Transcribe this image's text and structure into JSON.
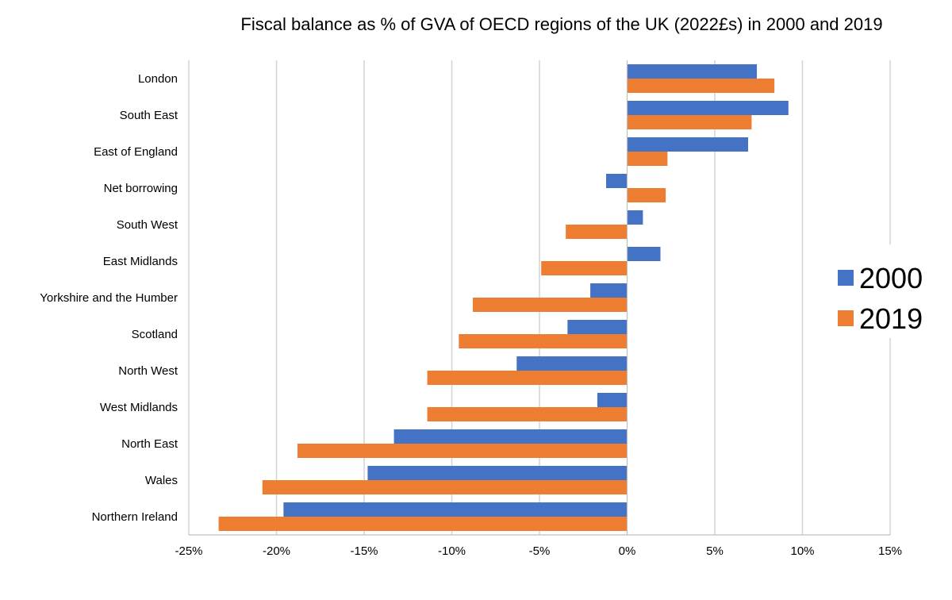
{
  "chart_data": {
    "type": "bar",
    "orientation": "horizontal",
    "title": "Fiscal balance as % of GVA of OECD regions of the UK (2022£s) in 2000 and 2019",
    "xlabel": "",
    "ylabel": "",
    "xlim": [
      -25,
      15
    ],
    "x_ticks": [
      -25,
      -20,
      -15,
      -10,
      -5,
      0,
      5,
      10,
      15
    ],
    "x_tick_labels": [
      "-25%",
      "-20%",
      "-15%",
      "-10%",
      "-5%",
      "0%",
      "5%",
      "10%",
      "15%"
    ],
    "grid": true,
    "legend_position": "right",
    "categories": [
      "London",
      "South East",
      "East of England",
      "Net borrowing",
      "South West",
      "East Midlands",
      "Yorkshire and the Humber",
      "Scotland",
      "North West",
      "West Midlands",
      "North East",
      "Wales",
      "Northern Ireland"
    ],
    "series": [
      {
        "name": "2000",
        "color": "#4472C4",
        "values": [
          7.4,
          9.2,
          6.9,
          -1.2,
          0.9,
          1.9,
          -2.1,
          -3.4,
          -6.3,
          -1.7,
          -13.3,
          -14.8,
          -19.6
        ]
      },
      {
        "name": "2019",
        "color": "#ED7D31",
        "values": [
          8.4,
          7.1,
          2.3,
          2.2,
          -3.5,
          -4.9,
          -8.8,
          -9.6,
          -11.4,
          -11.4,
          -18.8,
          -20.8,
          -23.3
        ]
      }
    ]
  }
}
